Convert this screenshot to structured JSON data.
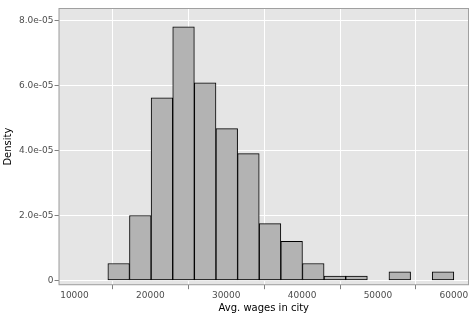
{
  "chart_data": {
    "type": "histogram",
    "x_label": "Avg. wages in city",
    "y_label": "Density",
    "bins": [
      14400,
      17250,
      20100,
      22950,
      25800,
      28650,
      31500,
      34350,
      37200,
      40050,
      42900,
      45750,
      48600,
      51450,
      54300,
      57150,
      60000
    ],
    "values": [
      5.2e-06,
      2e-05,
      5.63e-05,
      7.82e-05,
      6.09e-05,
      4.68e-05,
      3.91e-05,
      1.75e-05,
      1.2e-05,
      5.2e-06,
      1.3e-06,
      1.3e-06,
      0,
      2.6e-06,
      0,
      2.6e-06
    ],
    "color": "#b3b3b3",
    "xlim": [
      7900,
      62000
    ],
    "ylim": [
      -1.5e-06,
      8.4e-05
    ],
    "xticks": [
      10000,
      20000,
      30000,
      40000,
      50000,
      60000
    ],
    "yticks": [
      0,
      {
        "value": 2e-05,
        "label": "2.0e-05"
      },
      {
        "value": 4e-05,
        "label": "4.0e-05"
      },
      {
        "value": 6e-05,
        "label": "6.0e-05"
      },
      {
        "value": 8e-05,
        "label": "8.0e-05"
      }
    ],
    "grid": true
  }
}
